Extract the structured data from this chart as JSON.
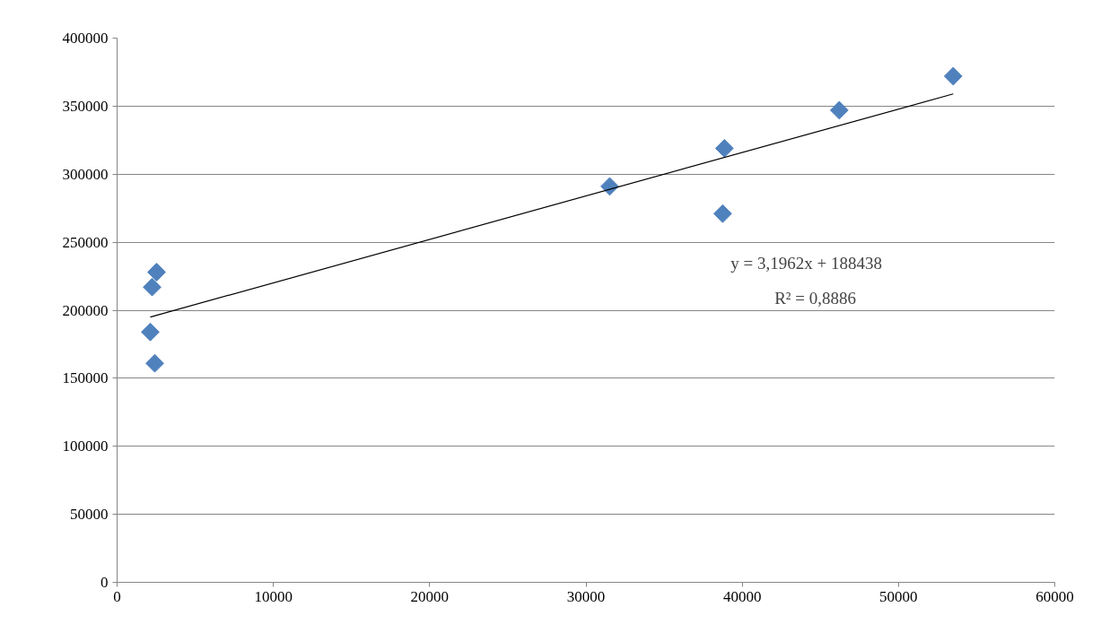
{
  "chart_data": {
    "type": "scatter",
    "grid": "y",
    "xlim": [
      0,
      60000
    ],
    "xticks": [
      0,
      10000,
      20000,
      30000,
      40000,
      50000,
      60000
    ],
    "ylim": [
      0,
      400000
    ],
    "yticks": [
      0,
      50000,
      100000,
      150000,
      200000,
      250000,
      300000,
      350000,
      400000
    ],
    "series": [
      {
        "marker": "diamond",
        "color": "#4f81bd",
        "x": [
          2526,
          2240,
          2124,
          2411,
          31520,
          38860,
          38750,
          46210,
          53500
        ],
        "values": [
          228000,
          217000,
          184000,
          161000,
          291000,
          319000,
          271000,
          347000,
          372000
        ]
      },
      {
        "type": "line",
        "marker": "none",
        "color": "#000000",
        "x": [
          2124,
          53500
        ],
        "values": [
          195000,
          359000
        ]
      }
    ],
    "annotations": [
      "y = 3,1962x + 188438",
      "R² = 0,8886"
    ]
  }
}
